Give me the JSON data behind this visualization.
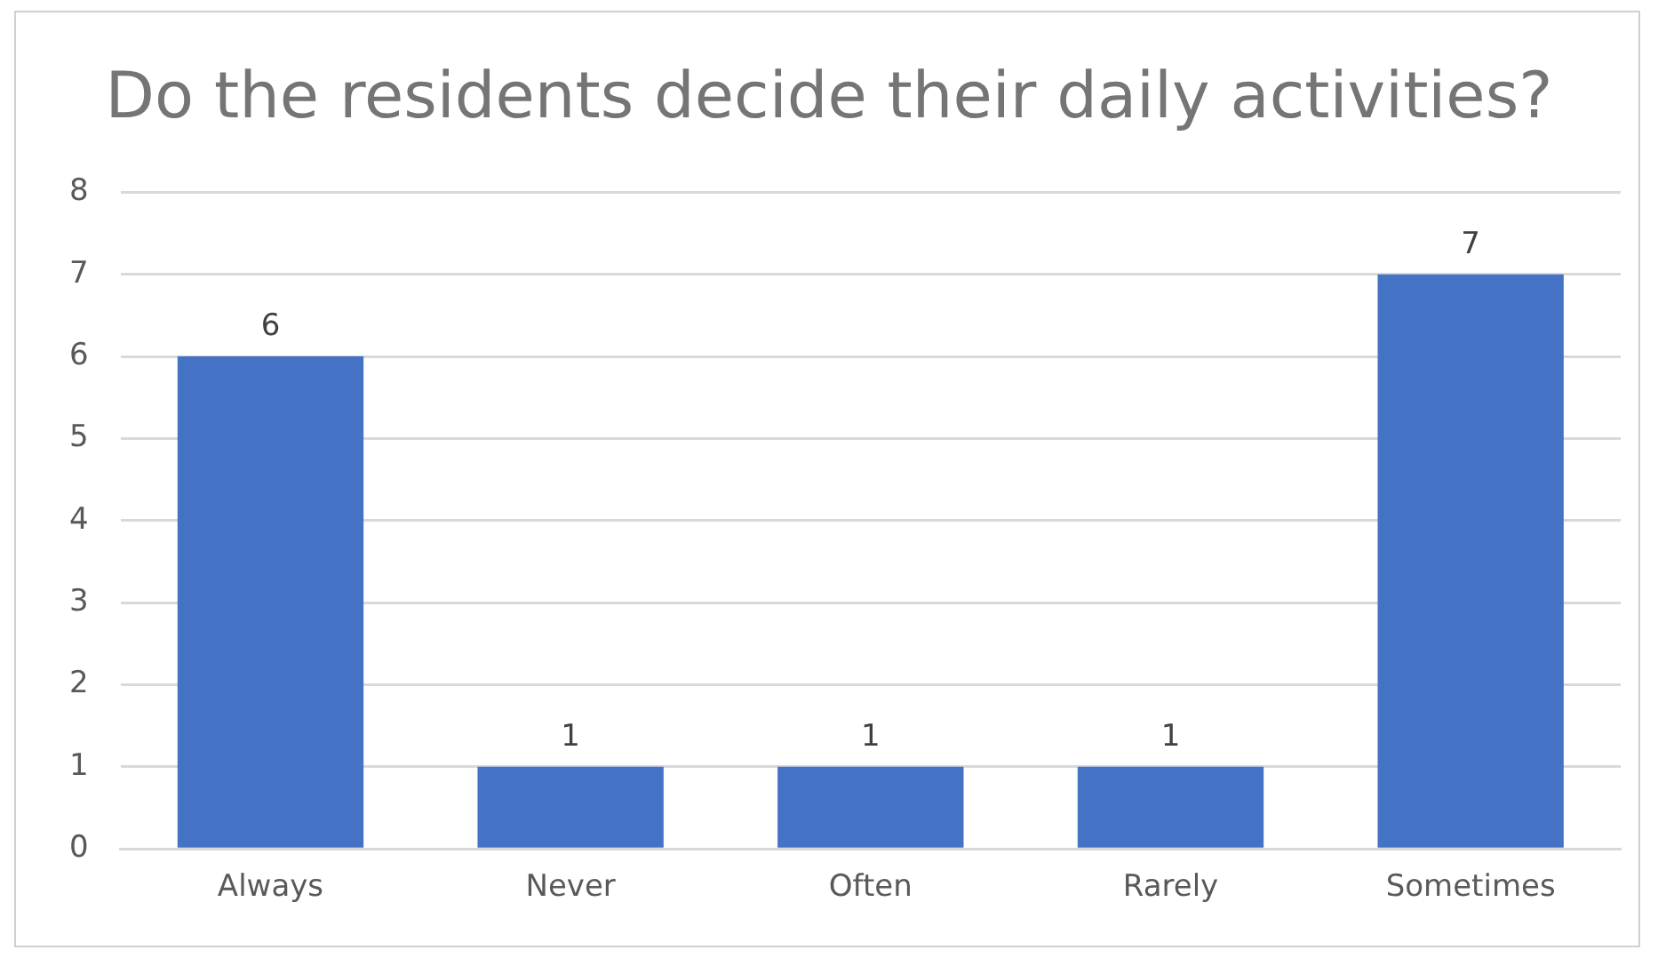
{
  "chart_data": {
    "type": "bar",
    "title": "Do the residents decide their daily activities?",
    "categories": [
      "Always",
      "Never",
      "Often",
      "Rarely",
      "Sometimes"
    ],
    "values": [
      6,
      1,
      1,
      1,
      7
    ],
    "color": "#4472c4",
    "ylim": [
      0,
      8
    ],
    "yticks": [
      0,
      1,
      2,
      3,
      4,
      5,
      6,
      7,
      8
    ],
    "grid": "y",
    "data_labels": true,
    "legend": false
  }
}
